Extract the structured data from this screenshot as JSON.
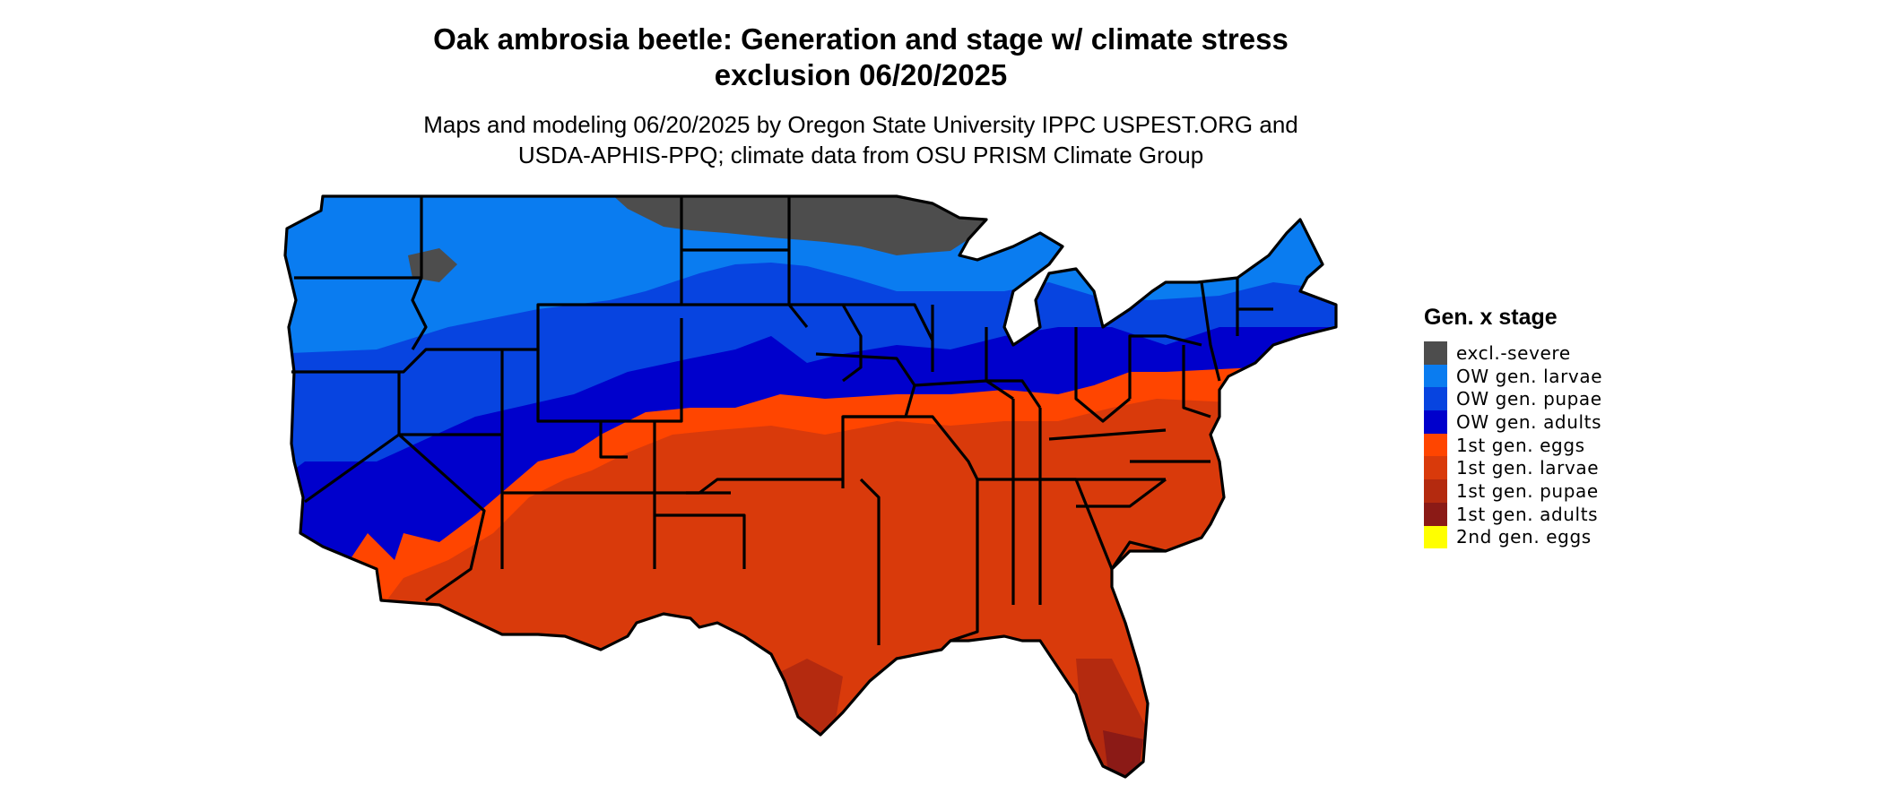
{
  "header": {
    "title_line1": "Oak ambrosia beetle: Generation and stage w/ climate stress",
    "title_line2": "exclusion 06/20/2025",
    "subtitle_line1": "Maps and modeling 06/20/2025 by Oregon State University IPPC USPEST.ORG and",
    "subtitle_line2": "USDA-APHIS-PPQ; climate data from OSU PRISM Climate Group"
  },
  "legend": {
    "title": "Gen. x stage",
    "items": [
      {
        "label": "excl.-severe",
        "color": "#4d4d4d"
      },
      {
        "label": "OW gen. larvae",
        "color": "#0a7cf0"
      },
      {
        "label": "OW gen. pupae",
        "color": "#0744e0"
      },
      {
        "label": "OW gen. adults",
        "color": "#0000cc"
      },
      {
        "label": "1st gen. eggs",
        "color": "#ff4500"
      },
      {
        "label": "1st gen. larvae",
        "color": "#d93a0b"
      },
      {
        "label": "1st gen. pupae",
        "color": "#b42a0f"
      },
      {
        "label": "1st gen. adults",
        "color": "#8b1a16"
      },
      {
        "label": "2nd gen. eggs",
        "color": "#ffff00"
      }
    ]
  }
}
